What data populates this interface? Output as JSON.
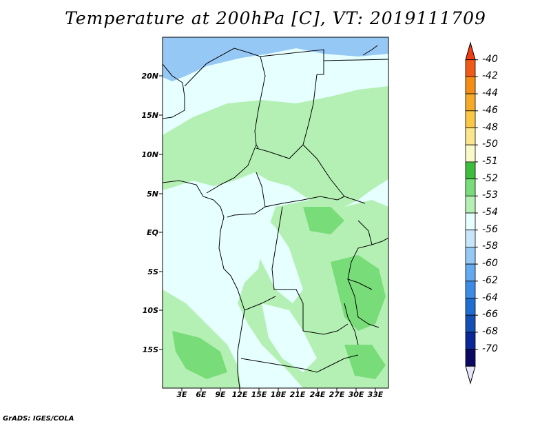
{
  "title": "Temperature at 200hPa [C], VT: 2019111709",
  "credit": "GrADS: IGES/COLA",
  "lat_labels": [
    "20N",
    "15N",
    "10N",
    "5N",
    "EQ",
    "5S",
    "10S",
    "15S"
  ],
  "lon_labels": [
    "3E",
    "6E",
    "9E",
    "12E",
    "15E",
    "18E",
    "21E",
    "24E",
    "27E",
    "30E",
    "33E"
  ],
  "colorbar": {
    "labels": [
      "-40",
      "-42",
      "-44",
      "-46",
      "-48",
      "-50",
      "-51",
      "-52",
      "-53",
      "-54",
      "-56",
      "-58",
      "-60",
      "-62",
      "-64",
      "-66",
      "-68",
      "-70"
    ],
    "colors": [
      "#f03c14",
      "#f05a14",
      "#f58c14",
      "#f5aa28",
      "#fac846",
      "#fae68c",
      "#fafac8",
      "#3cbe3c",
      "#78dc78",
      "#b4f0b4",
      "#e6ffff",
      "#c8e6fa",
      "#96c8f5",
      "#64aaf0",
      "#3c8ce6",
      "#1e6ed2",
      "#1450b4",
      "#0a2896",
      "#0a0a64",
      "#e6e6fa"
    ]
  },
  "map_colors": {
    "cold": "#96c8f5",
    "mid": "#e6ffff",
    "warm": "#b4f0b4",
    "warmer": "#78dc78"
  }
}
